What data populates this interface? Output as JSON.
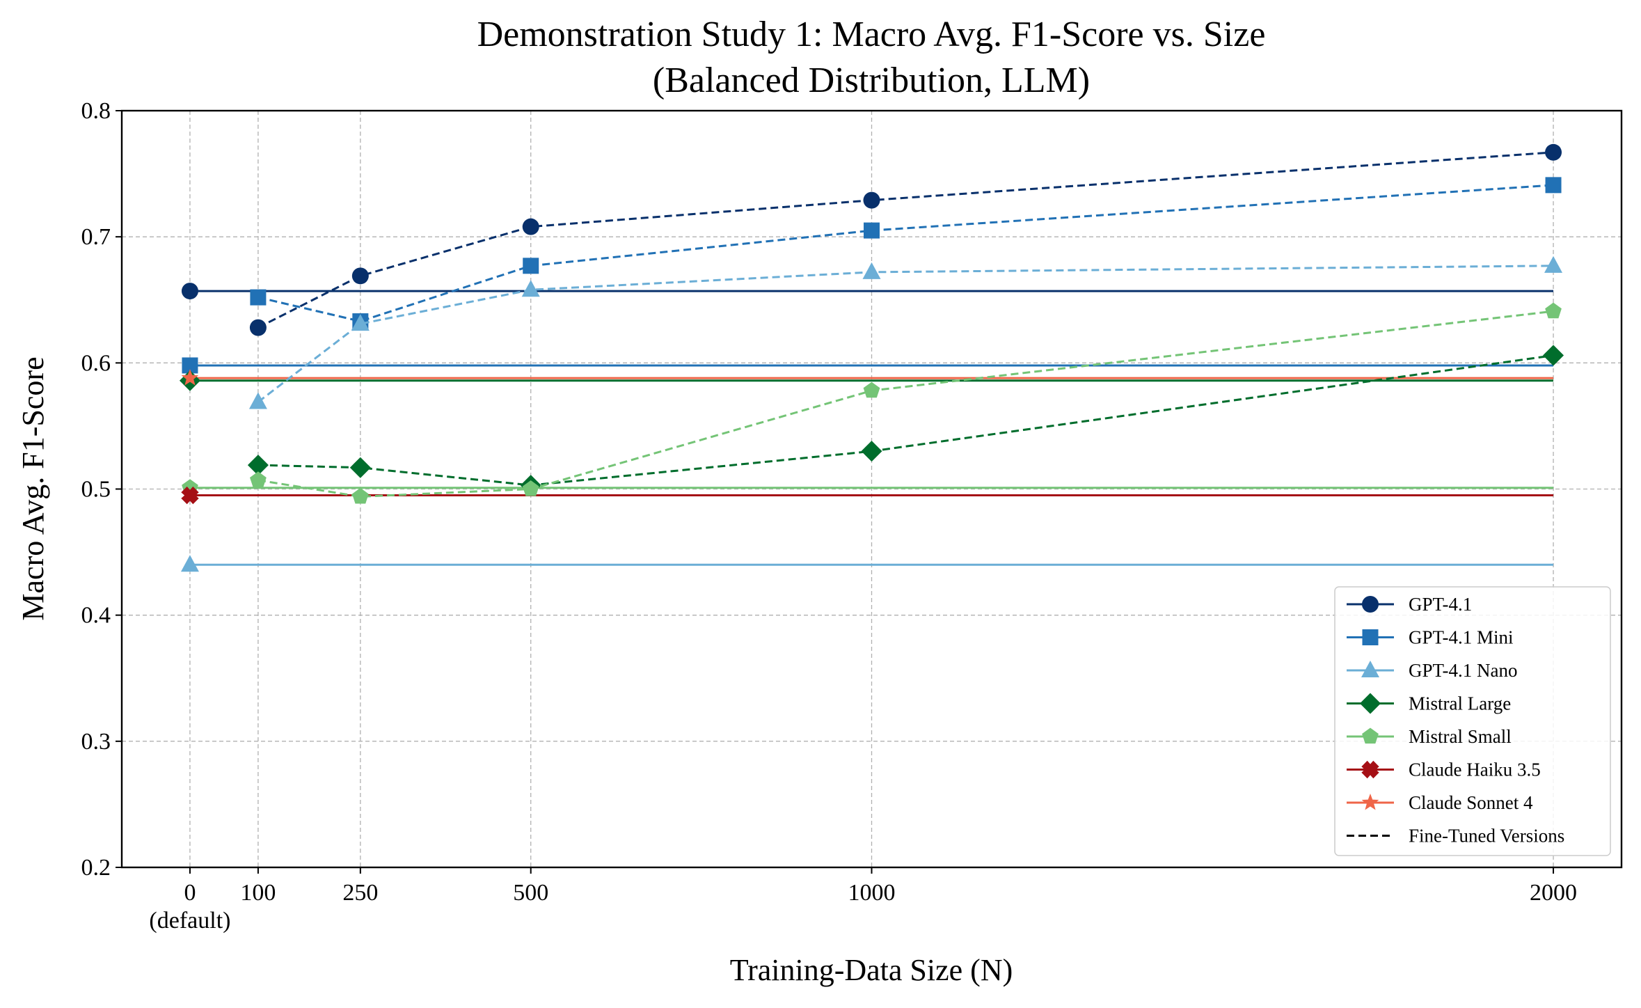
{
  "chart_data": {
    "type": "line",
    "title": "Demonstration Study 1: Macro Avg. F1-Score vs. Size",
    "subtitle": "(Balanced Distribution, LLM)",
    "xlabel": "Training-Data Size (N)",
    "ylabel": "Macro Avg. F1-Score",
    "x": [
      0,
      100,
      250,
      500,
      1000,
      2000
    ],
    "xtick_labels": [
      "0\n(default)",
      "100",
      "250",
      "500",
      "1000",
      "2000"
    ],
    "xlim": [
      -100,
      2100
    ],
    "ylim": [
      0.2,
      0.8
    ],
    "yticks": [
      0.2,
      0.3,
      0.4,
      0.5,
      0.6,
      0.7,
      0.8
    ],
    "ytick_labels": [
      "0.2",
      "0.3",
      "0.4",
      "0.5",
      "0.6",
      "0.7",
      "0.8"
    ],
    "grid": true,
    "legend_position": "bottom-right",
    "series": [
      {
        "name": "GPT-4.1",
        "color": "#08306b",
        "marker": "circle",
        "baseline": 0.657,
        "fine_tuned": [
          {
            "x": 100,
            "y": 0.628
          },
          {
            "x": 250,
            "y": 0.669
          },
          {
            "x": 500,
            "y": 0.708
          },
          {
            "x": 1000,
            "y": 0.729
          },
          {
            "x": 2000,
            "y": 0.767
          }
        ]
      },
      {
        "name": "GPT-4.1 Mini",
        "color": "#2171b5",
        "marker": "square",
        "baseline": 0.598,
        "fine_tuned": [
          {
            "x": 100,
            "y": 0.652
          },
          {
            "x": 250,
            "y": 0.633
          },
          {
            "x": 500,
            "y": 0.677
          },
          {
            "x": 1000,
            "y": 0.705
          },
          {
            "x": 2000,
            "y": 0.741
          }
        ]
      },
      {
        "name": "GPT-4.1 Nano",
        "color": "#6baed6",
        "marker": "triangle",
        "baseline": 0.44,
        "fine_tuned": [
          {
            "x": 100,
            "y": 0.569
          },
          {
            "x": 250,
            "y": 0.631
          },
          {
            "x": 500,
            "y": 0.658
          },
          {
            "x": 1000,
            "y": 0.672
          },
          {
            "x": 2000,
            "y": 0.677
          }
        ]
      },
      {
        "name": "Mistral Large",
        "color": "#006d2c",
        "marker": "diamond",
        "baseline": 0.586,
        "fine_tuned": [
          {
            "x": 100,
            "y": 0.519
          },
          {
            "x": 250,
            "y": 0.517
          },
          {
            "x": 500,
            "y": 0.503
          },
          {
            "x": 1000,
            "y": 0.53
          },
          {
            "x": 2000,
            "y": 0.606
          }
        ]
      },
      {
        "name": "Mistral Small",
        "color": "#74c476",
        "marker": "pentagon",
        "baseline": 0.501,
        "fine_tuned": [
          {
            "x": 100,
            "y": 0.507
          },
          {
            "x": 250,
            "y": 0.494
          },
          {
            "x": 500,
            "y": 0.5
          },
          {
            "x": 1000,
            "y": 0.578
          },
          {
            "x": 2000,
            "y": 0.641
          }
        ]
      },
      {
        "name": "Claude Haiku 3.5",
        "color": "#a50f15",
        "marker": "x",
        "baseline": 0.495,
        "fine_tuned": []
      },
      {
        "name": "Claude Sonnet 4",
        "color": "#ef6548",
        "marker": "star",
        "baseline": 0.588,
        "fine_tuned": []
      }
    ],
    "legend": [
      {
        "label": "GPT-4.1",
        "color": "#08306b",
        "marker": "circle",
        "style": "solid"
      },
      {
        "label": "GPT-4.1 Mini",
        "color": "#2171b5",
        "marker": "square",
        "style": "solid"
      },
      {
        "label": "GPT-4.1 Nano",
        "color": "#6baed6",
        "marker": "triangle",
        "style": "solid"
      },
      {
        "label": "Mistral Large",
        "color": "#006d2c",
        "marker": "diamond",
        "style": "solid"
      },
      {
        "label": "Mistral Small",
        "color": "#74c476",
        "marker": "pentagon",
        "style": "solid"
      },
      {
        "label": "Claude Haiku 3.5",
        "color": "#a50f15",
        "marker": "x",
        "style": "solid"
      },
      {
        "label": "Claude Sonnet 4",
        "color": "#ef6548",
        "marker": "star",
        "style": "solid"
      },
      {
        "label": "Fine-Tuned Versions",
        "color": "#000000",
        "marker": "none",
        "style": "dashed"
      }
    ]
  }
}
